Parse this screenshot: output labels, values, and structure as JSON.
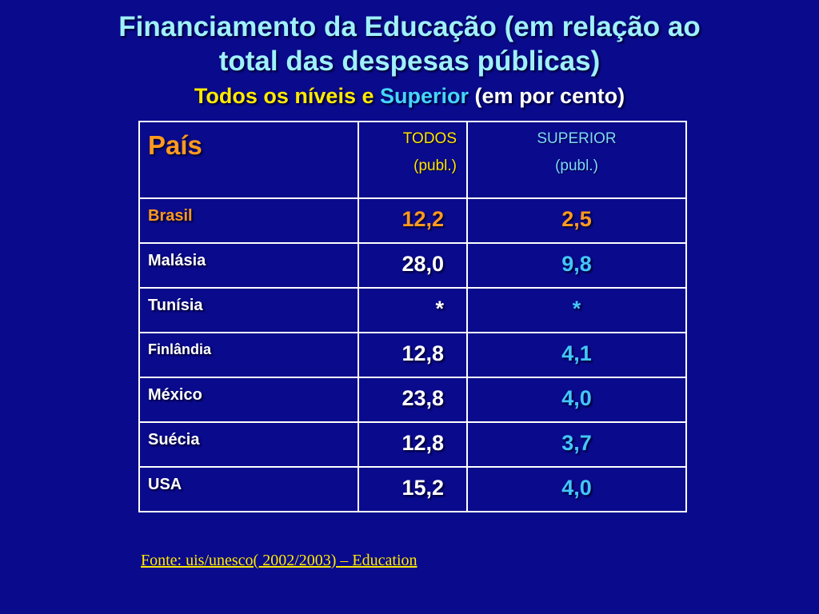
{
  "title_line1": "Financiamento da Educação (em relação ao",
  "title_line2": "total das despesas públicas)",
  "subtitle": {
    "part1": "Todos os níveis e",
    "part2": "Superior",
    "part3": "(em por cento)"
  },
  "table": {
    "header_country": "País",
    "header_todos_l1": "TODOS",
    "header_todos_l2": "(publ.)",
    "header_sup_l1": "SUPERIOR",
    "header_sup_l2": "(publ.)",
    "rows": [
      {
        "country": "Brasil",
        "todos": "12,2",
        "superior": "2,5"
      },
      {
        "country": "Malásia",
        "todos": "28,0",
        "superior": "9,8"
      },
      {
        "country": "Tunísia",
        "todos": "*",
        "superior": "*"
      },
      {
        "country": "Finlândia",
        "todos": "12,8",
        "superior": "4,1"
      },
      {
        "country": "México",
        "todos": "23,8",
        "superior": "4,0"
      },
      {
        "country": "Suécia",
        "todos": "12,8",
        "superior": "3,7"
      },
      {
        "country": "USA",
        "todos": "15,2",
        "superior": "4,0"
      }
    ]
  },
  "source": "Fonte: uis/unesco( 2002/2003) – Education",
  "colors": {
    "background": "#0a0a8c",
    "title": "#9ff0ff",
    "highlight_orange": "#ff9a1e",
    "yellow": "#ffea00",
    "cyan": "#44c6ff"
  }
}
